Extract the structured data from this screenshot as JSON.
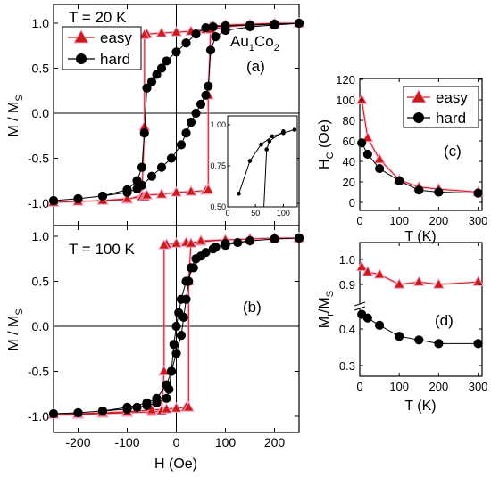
{
  "colors": {
    "easy": "#cc1a1a",
    "easy_halo": "#f4a6c8",
    "hard": "#000000",
    "axis": "#000000"
  },
  "chart_data": [
    {
      "id": "a",
      "type": "line",
      "panel_label": "(a)",
      "annotation_temp": "T = 20 K",
      "annotation_sample": "Au",
      "annotation_sub1": "1",
      "annotation_co": "Co",
      "annotation_sub2": "2",
      "xlim": [
        -250,
        250
      ],
      "ylim": [
        -1.1,
        1.1
      ],
      "yticks": [
        -1.0,
        -0.5,
        0.0,
        0.5,
        1.0
      ],
      "ytick_labels": [
        "-1.0",
        "-0.5",
        "0.0",
        "0.5",
        "1.0"
      ],
      "ylabel": "M / M",
      "ylabel_sub": "S",
      "legend": {
        "position": "top-left",
        "entries": [
          "easy",
          "hard"
        ]
      },
      "series": [
        {
          "name": "easy",
          "x": [
            250,
            200,
            150,
            100,
            75,
            70,
            70,
            60,
            30,
            0,
            -30,
            -60,
            -65,
            -65,
            -70,
            -100,
            -150,
            -200,
            -250,
            -200,
            -150,
            -100,
            -70,
            -65,
            -60,
            -30,
            0,
            30,
            60,
            65,
            65,
            70,
            100,
            150,
            200,
            250
          ],
          "y": [
            1.0,
            1.0,
            0.99,
            0.98,
            0.97,
            0.96,
            0.94,
            0.93,
            0.91,
            0.9,
            0.89,
            0.88,
            0.87,
            -0.15,
            -0.91,
            -0.96,
            -0.97,
            -0.98,
            -0.99,
            -0.98,
            -0.97,
            -0.95,
            -0.93,
            -0.93,
            -0.91,
            -0.9,
            -0.88,
            -0.87,
            -0.86,
            -0.85,
            0.2,
            0.93,
            0.96,
            0.98,
            0.99,
            1.0
          ]
        },
        {
          "name": "hard",
          "x": [
            250,
            200,
            150,
            100,
            75,
            60,
            40,
            20,
            0,
            -20,
            -30,
            -40,
            -50,
            -60,
            -65,
            -70,
            -80,
            -100,
            -150,
            -200,
            -250,
            -200,
            -150,
            -100,
            -80,
            -70,
            -50,
            -30,
            -10,
            10,
            20,
            30,
            40,
            50,
            60,
            65,
            70,
            80,
            100,
            150,
            200,
            250
          ],
          "y": [
            1.0,
            0.99,
            0.98,
            0.97,
            0.96,
            0.95,
            0.88,
            0.78,
            0.68,
            0.58,
            0.5,
            0.43,
            0.35,
            0.28,
            -0.22,
            -0.6,
            -0.75,
            -0.85,
            -0.92,
            -0.95,
            -0.97,
            -0.95,
            -0.92,
            -0.88,
            -0.84,
            -0.8,
            -0.7,
            -0.6,
            -0.5,
            -0.35,
            -0.22,
            -0.1,
            0.0,
            0.1,
            0.2,
            0.3,
            0.7,
            0.85,
            0.92,
            0.96,
            0.98,
            1.0
          ]
        }
      ]
    },
    {
      "id": "a-inset",
      "type": "line",
      "xlim": [
        0,
        125
      ],
      "ylim": [
        0.5,
        1.0
      ],
      "xticks": [
        0,
        50,
        100
      ],
      "xtick_labels": [
        "0",
        "50",
        "100"
      ],
      "yticks": [
        0.5,
        0.75,
        1.0
      ],
      "ytick_labels": [
        "0.50",
        "0.75",
        "1.00"
      ],
      "series": [
        {
          "name": "hard",
          "x": [
            20,
            40,
            60,
            80,
            100,
            120
          ],
          "y": [
            0.58,
            0.78,
            0.88,
            0.93,
            0.95,
            0.97
          ]
        },
        {
          "name": "hard-branch",
          "x": [
            65,
            70,
            75,
            100
          ],
          "y": [
            0.5,
            0.85,
            0.9,
            0.96
          ]
        }
      ]
    },
    {
      "id": "b",
      "type": "line",
      "panel_label": "(b)",
      "annotation_temp": "T = 100 K",
      "xlim": [
        -250,
        250
      ],
      "ylim": [
        -1.1,
        1.1
      ],
      "xticks": [
        -200,
        -100,
        0,
        100,
        200
      ],
      "xtick_labels": [
        "-200",
        "-100",
        "0",
        "100",
        "200"
      ],
      "yticks": [
        -1.0,
        -0.5,
        0.0,
        0.5,
        1.0
      ],
      "ytick_labels": [
        "-1.0",
        "-0.5",
        "0.0",
        "0.5",
        "1.0"
      ],
      "xlabel": "H (Oe)",
      "ylabel": "M / M",
      "ylabel_sub": "S",
      "series": [
        {
          "name": "easy",
          "x": [
            250,
            200,
            150,
            100,
            50,
            20,
            0,
            -20,
            -25,
            -25,
            -30,
            -50,
            -100,
            -150,
            -200,
            -250,
            -200,
            -150,
            -100,
            -50,
            -20,
            0,
            20,
            25,
            25,
            30,
            50,
            100,
            150,
            200,
            250
          ],
          "y": [
            0.98,
            0.98,
            0.97,
            0.96,
            0.94,
            0.93,
            0.92,
            0.91,
            0.9,
            -0.5,
            -0.94,
            -0.95,
            -0.96,
            -0.97,
            -0.98,
            -0.98,
            -0.97,
            -0.96,
            -0.95,
            -0.93,
            -0.92,
            -0.91,
            -0.9,
            -0.9,
            0.5,
            0.92,
            0.95,
            0.96,
            0.97,
            0.98,
            0.98
          ]
        },
        {
          "name": "hard",
          "x": [
            250,
            200,
            150,
            125,
            100,
            75,
            50,
            35,
            20,
            10,
            5,
            0,
            -5,
            -10,
            -15,
            -20,
            -40,
            -60,
            -80,
            -100,
            -150,
            -200,
            -250,
            -200,
            -150,
            -100,
            -60,
            -40,
            -20,
            -10,
            0,
            10,
            15,
            20,
            25,
            30,
            40,
            60,
            80,
            100,
            150,
            200,
            250
          ],
          "y": [
            0.98,
            0.97,
            0.95,
            0.93,
            0.9,
            0.86,
            0.78,
            0.65,
            0.5,
            0.3,
            0.15,
            0.0,
            -0.2,
            -0.5,
            -0.7,
            -0.8,
            -0.85,
            -0.88,
            -0.9,
            -0.92,
            -0.94,
            -0.96,
            -0.97,
            -0.96,
            -0.94,
            -0.9,
            -0.85,
            -0.8,
            -0.65,
            -0.5,
            -0.3,
            -0.1,
            0.1,
            0.3,
            0.5,
            0.65,
            0.75,
            0.82,
            0.88,
            0.92,
            0.95,
            0.97,
            0.98
          ]
        }
      ]
    },
    {
      "id": "c",
      "type": "line",
      "panel_label": "(c)",
      "xlim": [
        0,
        310
      ],
      "ylim": [
        0,
        120
      ],
      "xticks": [
        0,
        100,
        200,
        300
      ],
      "xtick_labels": [
        "0",
        "100",
        "200",
        "300"
      ],
      "yticks": [
        0,
        20,
        40,
        60,
        80,
        100,
        120
      ],
      "ytick_labels": [
        "0",
        "20",
        "40",
        "60",
        "80",
        "100",
        "120"
      ],
      "xlabel": "T (K)",
      "ylabel": "H",
      "ylabel_sub": "C",
      "ylabel_suffix": " (Oe)",
      "legend": {
        "position": "top-right",
        "entries": [
          "easy",
          "hard"
        ]
      },
      "series": [
        {
          "name": "easy",
          "x": [
            5,
            20,
            50,
            100,
            150,
            200,
            300
          ],
          "y": [
            100,
            63,
            42,
            22,
            15,
            13,
            10
          ]
        },
        {
          "name": "hard",
          "x": [
            5,
            20,
            50,
            100,
            150,
            200,
            300
          ],
          "y": [
            58,
            47,
            33,
            21,
            12,
            10,
            9
          ]
        }
      ]
    },
    {
      "id": "d",
      "type": "line",
      "panel_label": "(d)",
      "xlim": [
        0,
        310
      ],
      "ylim": [
        0.3,
        1.05
      ],
      "xticks": [
        0,
        100,
        200,
        300
      ],
      "xtick_labels": [
        "0",
        "100",
        "200",
        "300"
      ],
      "yticks": [
        0.3,
        0.4,
        0.9,
        1.0
      ],
      "ytick_labels": [
        "0.3",
        "0.4",
        "0.9",
        "1.0"
      ],
      "xlabel": "T (K)",
      "ylabel": "M",
      "ylabel_sub": "r",
      "ylabel_mid": "/M",
      "ylabel_sub2": "S",
      "series": [
        {
          "name": "easy",
          "x": [
            5,
            20,
            50,
            100,
            150,
            200,
            300
          ],
          "y": [
            0.97,
            0.95,
            0.94,
            0.9,
            0.91,
            0.9,
            0.91
          ]
        },
        {
          "name": "hard",
          "x": [
            5,
            20,
            50,
            100,
            150,
            200,
            300
          ],
          "y": [
            0.44,
            0.43,
            0.41,
            0.38,
            0.37,
            0.36,
            0.36
          ]
        }
      ]
    }
  ]
}
